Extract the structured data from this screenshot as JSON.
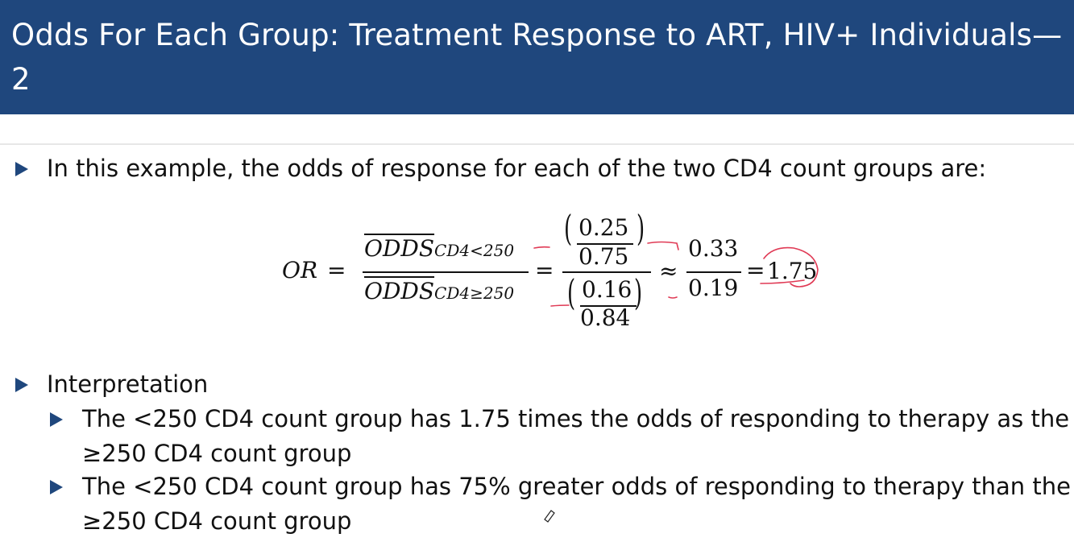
{
  "header": {
    "title": "Odds For Each Group: Treatment Response to ART, HIV+ Individuals—2"
  },
  "bullets": {
    "intro": "In this example, the odds of response for each of the two CD4 count groups are:",
    "interpretation": "Interpretation",
    "sub1_line1": "The <250 CD4 count group has 1.75 times the odds of responding to therapy as the",
    "sub1_line2": "≥250 CD4 count group",
    "sub2_line1": "The <250 CD4 count group has 75% greater odds of responding to therapy than the",
    "sub2_line2": "≥250 CD4 count group"
  },
  "formula": {
    "lhs": "OR",
    "eq": "=",
    "odds": "ODDS",
    "sub_num": "CD4<250",
    "sub_den": "CD4≥250",
    "num_top": "0.25",
    "num_bottom": "0.75",
    "den_top": "0.16",
    "den_bottom": "0.84",
    "approx": "≈",
    "ratio_top": "0.33",
    "ratio_bottom": "0.19",
    "result": "1.75"
  },
  "colors": {
    "header_bg": "#1f477d",
    "bullet_arrow": "#1f477d",
    "annotation_ink": "#e03a55"
  }
}
